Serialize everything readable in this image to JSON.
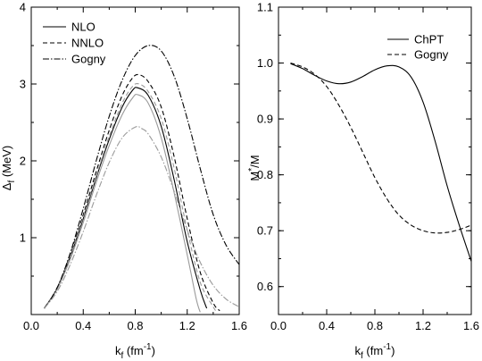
{
  "chart_data": [
    {
      "type": "line",
      "xlabel_main": "k",
      "xlabel_sub": "f",
      "xlabel_unit": "(fm",
      "xlabel_exp": "-1",
      "xlabel_close": ")",
      "ylabel_main": "Δ",
      "ylabel_sub": "f",
      "ylabel_unit": "(MeV)",
      "xlim": [
        0.0,
        1.6
      ],
      "ylim": [
        0.0,
        4.0
      ],
      "xticks": [
        0.0,
        0.4,
        0.8,
        1.2,
        1.6
      ],
      "xtick_labels": [
        "0.0",
        "0.4",
        "0.8",
        "1.2",
        "1.6"
      ],
      "yticks": [
        1,
        2,
        3,
        4
      ],
      "ytick_labels": [
        "1",
        "2",
        "3",
        "4"
      ],
      "legend_position": "top-left",
      "legend": [
        {
          "label": "NLO",
          "color": "#000000",
          "dash": ""
        },
        {
          "label": "NNLO",
          "color": "#000000",
          "dash": "5,3"
        },
        {
          "label": "Gogny",
          "color": "#000000",
          "dash": "7,2,1.5,2"
        }
      ],
      "series": [
        {
          "name": "NLO",
          "color": "#000000",
          "dash": "",
          "points": [
            [
              0.1,
              0.08
            ],
            [
              0.2,
              0.34
            ],
            [
              0.3,
              0.75
            ],
            [
              0.4,
              1.25
            ],
            [
              0.5,
              1.78
            ],
            [
              0.6,
              2.28
            ],
            [
              0.7,
              2.7
            ],
            [
              0.78,
              2.92
            ],
            [
              0.82,
              2.95
            ],
            [
              0.9,
              2.85
            ],
            [
              1.0,
              2.45
            ],
            [
              1.1,
              1.75
            ],
            [
              1.2,
              0.95
            ],
            [
              1.3,
              0.32
            ],
            [
              1.35,
              0.08
            ]
          ]
        },
        {
          "name": "",
          "color": "#9a9a9a",
          "dash": "",
          "points": [
            [
              0.1,
              0.08
            ],
            [
              0.2,
              0.33
            ],
            [
              0.3,
              0.72
            ],
            [
              0.4,
              1.2
            ],
            [
              0.5,
              1.72
            ],
            [
              0.6,
              2.2
            ],
            [
              0.7,
              2.6
            ],
            [
              0.78,
              2.82
            ],
            [
              0.82,
              2.86
            ],
            [
              0.9,
              2.75
            ],
            [
              1.0,
              2.3
            ],
            [
              1.1,
              1.58
            ],
            [
              1.2,
              0.78
            ],
            [
              1.27,
              0.2
            ],
            [
              1.3,
              0.03
            ]
          ]
        },
        {
          "name": "NNLO",
          "color": "#000000",
          "dash": "5,3",
          "points": [
            [
              0.1,
              0.08
            ],
            [
              0.2,
              0.35
            ],
            [
              0.3,
              0.78
            ],
            [
              0.4,
              1.3
            ],
            [
              0.5,
              1.86
            ],
            [
              0.6,
              2.4
            ],
            [
              0.7,
              2.85
            ],
            [
              0.78,
              3.08
            ],
            [
              0.83,
              3.12
            ],
            [
              0.9,
              3.03
            ],
            [
              1.0,
              2.7
            ],
            [
              1.1,
              2.05
            ],
            [
              1.2,
              1.25
            ],
            [
              1.3,
              0.55
            ],
            [
              1.4,
              0.15
            ],
            [
              1.45,
              0.05
            ]
          ]
        },
        {
          "name": "",
          "color": "#9a9a9a",
          "dash": "5,3",
          "points": [
            [
              0.1,
              0.08
            ],
            [
              0.2,
              0.34
            ],
            [
              0.3,
              0.76
            ],
            [
              0.4,
              1.27
            ],
            [
              0.5,
              1.8
            ],
            [
              0.6,
              2.32
            ],
            [
              0.7,
              2.75
            ],
            [
              0.78,
              2.97
            ],
            [
              0.83,
              3.0
            ],
            [
              0.9,
              2.9
            ],
            [
              1.0,
              2.55
            ],
            [
              1.1,
              1.9
            ],
            [
              1.2,
              1.1
            ],
            [
              1.3,
              0.42
            ],
            [
              1.4,
              0.1
            ],
            [
              1.42,
              0.05
            ]
          ]
        },
        {
          "name": "Gogny",
          "color": "#000000",
          "dash": "7,2,1.5,2",
          "points": [
            [
              0.1,
              0.08
            ],
            [
              0.2,
              0.35
            ],
            [
              0.3,
              0.8
            ],
            [
              0.4,
              1.38
            ],
            [
              0.5,
              2.0
            ],
            [
              0.6,
              2.58
            ],
            [
              0.7,
              3.05
            ],
            [
              0.8,
              3.37
            ],
            [
              0.9,
              3.5
            ],
            [
              1.0,
              3.43
            ],
            [
              1.1,
              3.1
            ],
            [
              1.2,
              2.55
            ],
            [
              1.3,
              1.9
            ],
            [
              1.4,
              1.3
            ],
            [
              1.5,
              0.9
            ],
            [
              1.6,
              0.65
            ]
          ]
        },
        {
          "name": "",
          "color": "#9a9a9a",
          "dash": "7,2,1.5,2",
          "points": [
            [
              0.1,
              0.08
            ],
            [
              0.2,
              0.3
            ],
            [
              0.3,
              0.65
            ],
            [
              0.4,
              1.08
            ],
            [
              0.5,
              1.55
            ],
            [
              0.6,
              1.98
            ],
            [
              0.7,
              2.3
            ],
            [
              0.8,
              2.44
            ],
            [
              0.85,
              2.42
            ],
            [
              0.9,
              2.35
            ],
            [
              1.0,
              2.05
            ],
            [
              1.1,
              1.6
            ],
            [
              1.2,
              1.1
            ],
            [
              1.3,
              0.68
            ],
            [
              1.4,
              0.38
            ],
            [
              1.5,
              0.2
            ],
            [
              1.6,
              0.1
            ]
          ]
        }
      ]
    },
    {
      "type": "line",
      "xlabel_main": "k",
      "xlabel_sub": "f",
      "xlabel_unit": "(fm",
      "xlabel_exp": "-1",
      "xlabel_close": ")",
      "ylabel_main": "M",
      "ylabel_prime": "*",
      "ylabel_rest": "/M",
      "xlim": [
        0.0,
        1.6
      ],
      "ylim": [
        0.55,
        1.1
      ],
      "xticks": [
        0.0,
        0.4,
        0.8,
        1.2,
        1.6
      ],
      "xtick_labels": [
        "0.0",
        "0.4",
        "0.8",
        "1.2",
        "1.6"
      ],
      "yticks": [
        0.6,
        0.7,
        0.8,
        0.9,
        1.0,
        1.1
      ],
      "ytick_labels": [
        "0.6",
        "0.7",
        "0.8",
        "0.9",
        "1.0",
        "1.1"
      ],
      "legend_position": "top-right",
      "legend": [
        {
          "label": "ChPT",
          "color": "#000000",
          "dash": ""
        },
        {
          "label": "Gogny",
          "color": "#000000",
          "dash": "5,3"
        }
      ],
      "series": [
        {
          "name": "ChPT",
          "color": "#000000",
          "dash": "",
          "points": [
            [
              0.1,
              0.999
            ],
            [
              0.2,
              0.99
            ],
            [
              0.3,
              0.978
            ],
            [
              0.4,
              0.968
            ],
            [
              0.5,
              0.963
            ],
            [
              0.6,
              0.966
            ],
            [
              0.7,
              0.976
            ],
            [
              0.8,
              0.988
            ],
            [
              0.9,
              0.995
            ],
            [
              1.0,
              0.993
            ],
            [
              1.1,
              0.975
            ],
            [
              1.2,
              0.93
            ],
            [
              1.3,
              0.86
            ],
            [
              1.4,
              0.78
            ],
            [
              1.5,
              0.71
            ],
            [
              1.6,
              0.645
            ]
          ]
        },
        {
          "name": "Gogny",
          "color": "#000000",
          "dash": "5,3",
          "points": [
            [
              0.1,
              1.0
            ],
            [
              0.2,
              0.993
            ],
            [
              0.3,
              0.98
            ],
            [
              0.4,
              0.958
            ],
            [
              0.5,
              0.925
            ],
            [
              0.6,
              0.885
            ],
            [
              0.7,
              0.84
            ],
            [
              0.8,
              0.795
            ],
            [
              0.9,
              0.757
            ],
            [
              1.0,
              0.728
            ],
            [
              1.1,
              0.71
            ],
            [
              1.2,
              0.7
            ],
            [
              1.3,
              0.696
            ],
            [
              1.4,
              0.697
            ],
            [
              1.5,
              0.702
            ],
            [
              1.6,
              0.71
            ]
          ]
        }
      ]
    }
  ]
}
